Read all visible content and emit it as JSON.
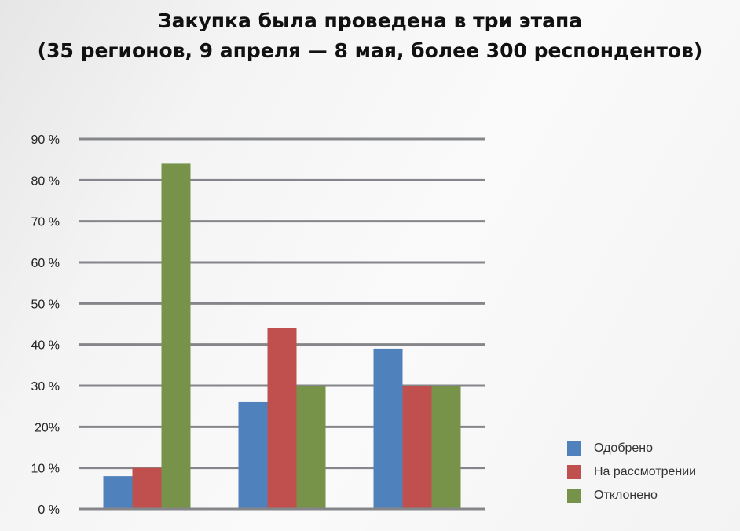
{
  "chart_data": {
    "type": "bar",
    "title": "Закупка была проведена в три этапа",
    "subtitle": "(35 регионов, 9 апреля — 8 мая, более 300 респондентов)",
    "xlabel": "",
    "ylabel": "",
    "ylim": [
      0,
      90
    ],
    "yticks": [
      0,
      10,
      20,
      30,
      40,
      50,
      60,
      70,
      80,
      90
    ],
    "ytick_labels": [
      "0 %",
      "10 %",
      "20%",
      "30 %",
      "40 %",
      "50 %",
      "60 %",
      "70 %",
      "80 %",
      "90 %"
    ],
    "grid": true,
    "legend_position": "bottom-right",
    "categories": [
      "",
      "",
      ""
    ],
    "series": [
      {
        "name": "Одобрено",
        "color": "#4f81bd",
        "values": [
          8,
          26,
          39
        ]
      },
      {
        "name": "На рассмотрении",
        "color": "#c0504d",
        "values": [
          10,
          44,
          30
        ]
      },
      {
        "name": "Отклонено",
        "color": "#77934a",
        "values": [
          84,
          30,
          30
        ]
      }
    ]
  }
}
